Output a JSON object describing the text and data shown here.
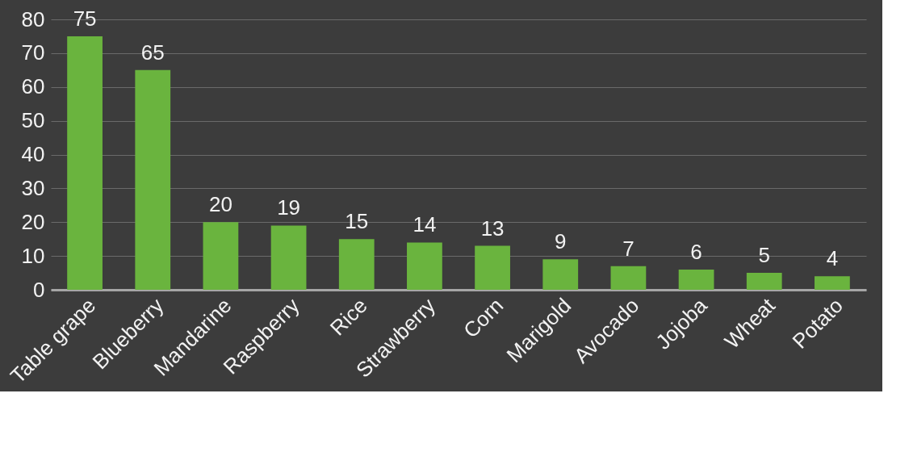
{
  "chart_data": {
    "type": "bar",
    "categories": [
      "Table grape",
      "Blueberry",
      "Mandarine",
      "Raspberry",
      "Rice",
      "Strawberry",
      "Corn",
      "Marigold",
      "Avocado",
      "Jojoba",
      "Wheat",
      "Potato"
    ],
    "values": [
      75,
      65,
      20,
      19,
      15,
      14,
      13,
      9,
      7,
      6,
      5,
      4
    ],
    "color": "#6ab43e",
    "ylim": [
      0,
      80
    ],
    "yticks": [
      0,
      10,
      20,
      30,
      40,
      50,
      60,
      70,
      80
    ],
    "grid": "y",
    "data_labels": true
  }
}
